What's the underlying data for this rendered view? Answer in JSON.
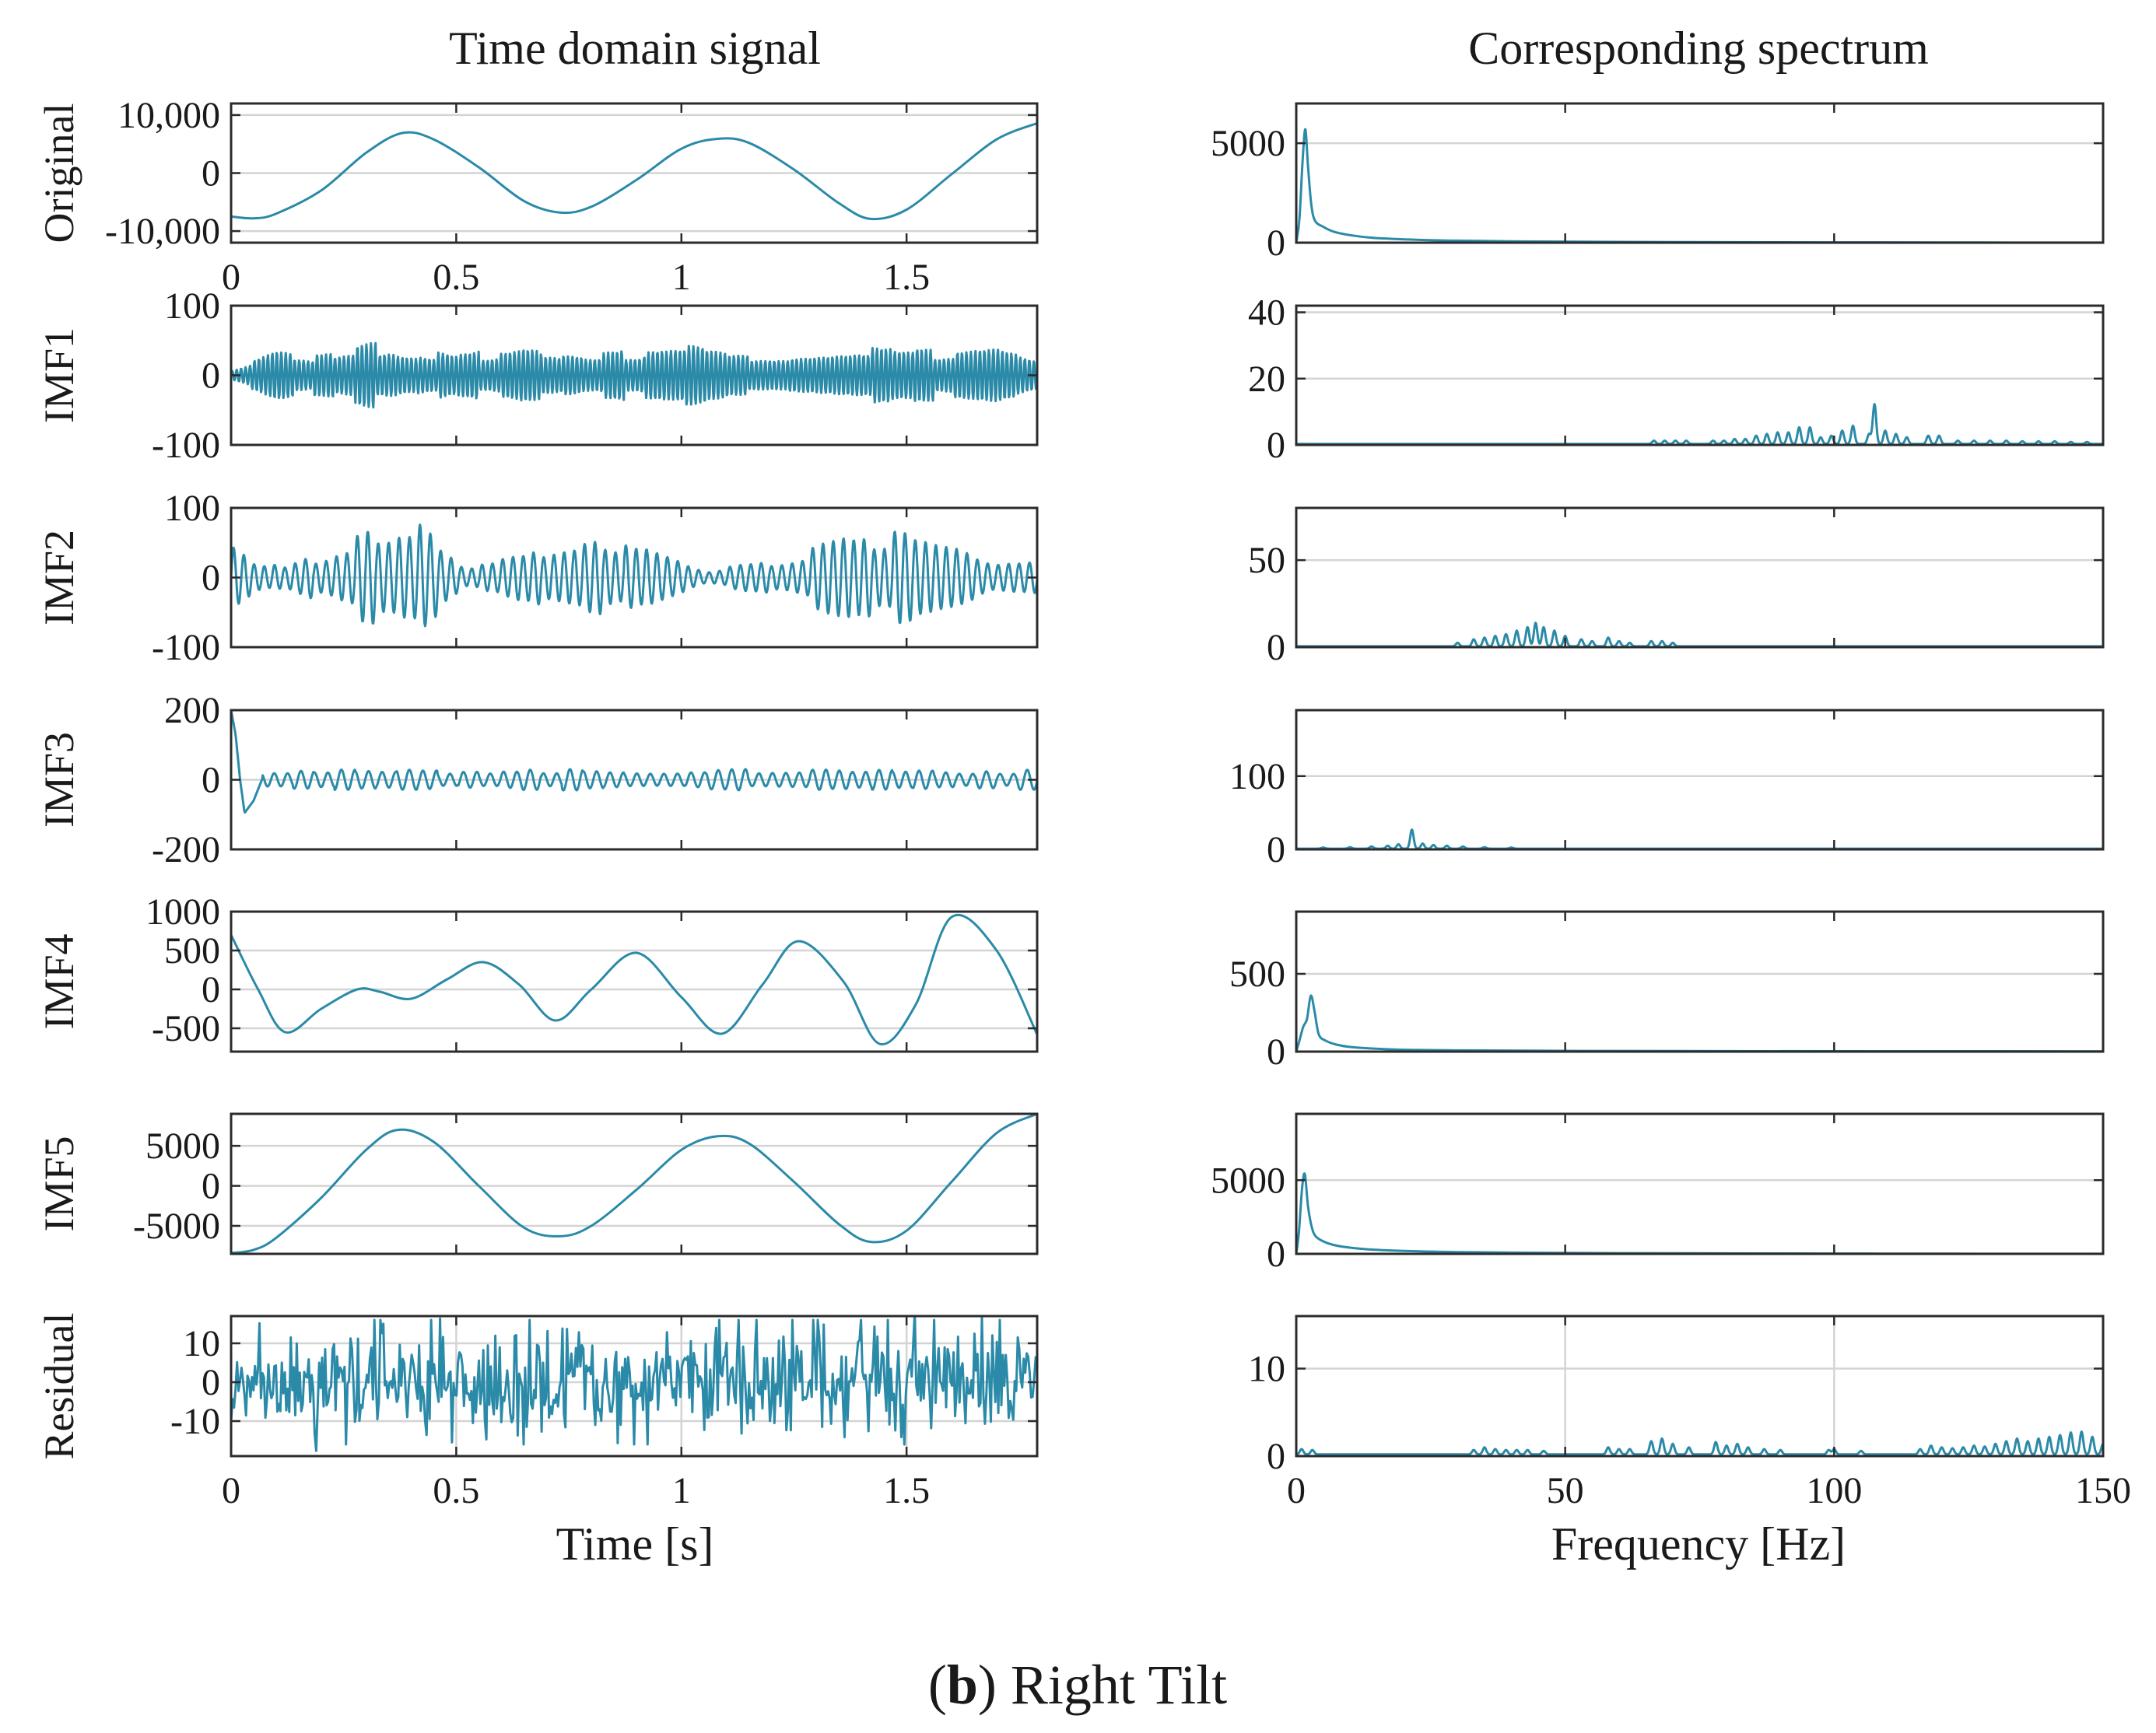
{
  "figure": {
    "time_title": "Time domain signal",
    "spectrum_title": "Corresponding spectrum",
    "time_xlabel": "Time [s]",
    "freq_xlabel": "Frequency [Hz]",
    "caption_bold": "b",
    "caption_text": "Right Tilt",
    "line_color": "#2a8aa8"
  },
  "chart_data": [
    {
      "type": "line",
      "panel": "time",
      "row": 0,
      "ylabel": "Original",
      "xlim": [
        0,
        1.79
      ],
      "ylim": [
        -12000,
        12000
      ],
      "xticks": [
        0,
        0.5,
        1,
        1.5
      ],
      "xticklabels": [
        "0",
        "0.5",
        "1",
        "1.5"
      ],
      "yticks": [
        10000,
        0,
        -10000
      ],
      "yticklabels": [
        "10,000",
        "0",
        "-10,000"
      ],
      "x": [
        0.0,
        0.05,
        0.1,
        0.2,
        0.3,
        0.38,
        0.45,
        0.55,
        0.65,
        0.73,
        0.8,
        0.9,
        1.0,
        1.08,
        1.15,
        1.25,
        1.35,
        1.42,
        1.5,
        1.6,
        1.7,
        1.79
      ],
      "y": [
        -7500,
        -7800,
        -7000,
        -3000,
        3500,
        6900,
        5800,
        1000,
        -4800,
        -6800,
        -5800,
        -1200,
        4200,
        5900,
        5200,
        600,
        -5200,
        -7900,
        -6300,
        -200,
        5800,
        8600
      ]
    },
    {
      "type": "line",
      "panel": "time",
      "row": 1,
      "ylabel": "IMF1",
      "xlim": [
        0,
        1.79
      ],
      "ylim": [
        -100,
        100
      ],
      "xticks": [
        0,
        0.5,
        1,
        1.5
      ],
      "xticklabels": [],
      "yticks": [
        100,
        0,
        -100
      ],
      "yticklabels": [
        "100",
        "0",
        "-100"
      ],
      "signal": {
        "kind": "oscillation",
        "cycles": 180,
        "envelope": [
          [
            0,
            8
          ],
          [
            0.1,
            35
          ],
          [
            0.2,
            25
          ],
          [
            0.35,
            40
          ],
          [
            0.5,
            22
          ],
          [
            0.65,
            35
          ],
          [
            0.8,
            25
          ],
          [
            1.0,
            38
          ],
          [
            1.1,
            30
          ],
          [
            1.25,
            28
          ],
          [
            1.4,
            35
          ],
          [
            1.55,
            30
          ],
          [
            1.7,
            36
          ],
          [
            1.79,
            20
          ]
        ]
      },
      "amplitude_peak": 40
    },
    {
      "type": "line",
      "panel": "time",
      "row": 2,
      "ylabel": "IMF2",
      "xlim": [
        0,
        1.79
      ],
      "ylim": [
        -100,
        100
      ],
      "xticks": [
        0,
        0.5,
        1,
        1.5
      ],
      "xticklabels": [],
      "yticks": [
        100,
        0,
        -100
      ],
      "yticklabels": [
        "100",
        "0",
        "-100"
      ],
      "signal": {
        "kind": "oscillation",
        "cycles": 78,
        "envelope": [
          [
            0,
            45
          ],
          [
            0.05,
            22
          ],
          [
            0.12,
            12
          ],
          [
            0.2,
            30
          ],
          [
            0.3,
            55
          ],
          [
            0.42,
            60
          ],
          [
            0.52,
            15
          ],
          [
            0.62,
            22
          ],
          [
            0.72,
            42
          ],
          [
            0.82,
            55
          ],
          [
            0.92,
            35
          ],
          [
            1.05,
            8
          ],
          [
            1.15,
            18
          ],
          [
            1.25,
            25
          ],
          [
            1.35,
            45
          ],
          [
            1.48,
            52
          ],
          [
            1.6,
            38
          ],
          [
            1.7,
            15
          ],
          [
            1.79,
            20
          ]
        ]
      },
      "amplitude_peak": 70
    },
    {
      "type": "line",
      "panel": "time",
      "row": 3,
      "ylabel": "IMF3",
      "xlim": [
        0,
        1.79
      ],
      "ylim": [
        -200,
        200
      ],
      "xticks": [
        0,
        0.5,
        1,
        1.5
      ],
      "xticklabels": [],
      "yticks": [
        200,
        0,
        -200
      ],
      "yticklabels": [
        "200",
        "0",
        "-200"
      ],
      "signal": {
        "kind": "oscillation",
        "cycles": 60,
        "envelope": [
          [
            0,
            25
          ],
          [
            0.3,
            22
          ],
          [
            0.6,
            25
          ],
          [
            1.0,
            22
          ],
          [
            1.4,
            26
          ],
          [
            1.79,
            22
          ]
        ]
      },
      "start_transient": [
        [
          0.0,
          200
        ],
        [
          0.01,
          130
        ],
        [
          0.02,
          0
        ],
        [
          0.03,
          -95
        ],
        [
          0.05,
          -60
        ],
        [
          0.07,
          5
        ]
      ]
    },
    {
      "type": "line",
      "panel": "time",
      "row": 4,
      "ylabel": "IMF4",
      "xlim": [
        0,
        1.79
      ],
      "ylim": [
        -800,
        1000
      ],
      "xticks": [
        0,
        0.5,
        1,
        1.5
      ],
      "xticklabels": [],
      "yticks": [
        1000,
        500,
        0,
        -500
      ],
      "yticklabels": [
        "1000",
        "500",
        "0",
        "-500"
      ],
      "x": [
        0.0,
        0.06,
        0.12,
        0.2,
        0.28,
        0.33,
        0.4,
        0.48,
        0.56,
        0.64,
        0.72,
        0.8,
        0.9,
        1.0,
        1.09,
        1.18,
        1.26,
        1.36,
        1.44,
        1.52,
        1.6,
        1.7,
        1.79
      ],
      "y": [
        700,
        0,
        -550,
        -250,
        0,
        -30,
        -120,
        130,
        350,
        60,
        -400,
        0,
        470,
        -100,
        -570,
        60,
        620,
        100,
        -700,
        -200,
        930,
        500,
        -580
      ]
    },
    {
      "type": "line",
      "panel": "time",
      "row": 5,
      "ylabel": "IMF5",
      "xlim": [
        0,
        1.79
      ],
      "ylim": [
        -8500,
        9000
      ],
      "xticks": [
        0,
        0.5,
        1,
        1.5
      ],
      "xticklabels": [],
      "yticks": [
        5000,
        0,
        -5000
      ],
      "yticklabels": [
        "5000",
        "0",
        "-5000"
      ],
      "x": [
        0.0,
        0.05,
        0.1,
        0.2,
        0.3,
        0.37,
        0.45,
        0.55,
        0.65,
        0.73,
        0.8,
        0.9,
        1.0,
        1.08,
        1.15,
        1.25,
        1.35,
        1.42,
        1.5,
        1.6,
        1.7,
        1.79
      ],
      "y": [
        -8400,
        -8000,
        -6500,
        -1500,
        4500,
        7000,
        5500,
        0,
        -5200,
        -6300,
        -5000,
        -500,
        4500,
        6200,
        5300,
        500,
        -4800,
        -7000,
        -5600,
        500,
        6600,
        9000
      ]
    },
    {
      "type": "line",
      "panel": "time",
      "row": 6,
      "ylabel": "Residual",
      "xlim": [
        0,
        1.79
      ],
      "ylim": [
        -19,
        17
      ],
      "xticks": [
        0,
        0.5,
        1,
        1.5
      ],
      "xticklabels": [
        "0",
        "0.5",
        "1",
        "1.5"
      ],
      "yticks": [
        10,
        0,
        -10
      ],
      "yticklabels": [
        "10",
        "0",
        "-10"
      ],
      "xgrid": true,
      "signal": {
        "kind": "noise",
        "points": 540,
        "envelope": [
          [
            0,
            9
          ],
          [
            1.79,
            9
          ]
        ]
      },
      "amplitude_peak": 16
    },
    {
      "type": "line",
      "panel": "spectrum",
      "row": 0,
      "xlim": [
        0,
        150
      ],
      "ylim": [
        0,
        7000
      ],
      "xticks": [
        0,
        50,
        100,
        150
      ],
      "xticklabels": [],
      "yticks": [
        5000,
        0
      ],
      "yticklabels": [
        "5000",
        "0"
      ],
      "x": [
        0,
        0.6,
        1.2,
        1.7,
        2.2,
        2.8,
        3.5,
        5,
        7,
        10,
        14,
        20,
        30,
        45,
        60,
        80,
        100,
        120,
        150
      ],
      "y": [
        0,
        1200,
        4200,
        5700,
        3800,
        1900,
        1100,
        800,
        550,
        380,
        250,
        170,
        100,
        60,
        40,
        25,
        15,
        10,
        5
      ]
    },
    {
      "type": "line",
      "panel": "spectrum",
      "row": 1,
      "xlim": [
        0,
        150
      ],
      "ylim": [
        0,
        42
      ],
      "xticks": [
        0,
        50,
        100,
        150
      ],
      "xticklabels": [],
      "yticks": [
        40,
        20,
        0
      ],
      "yticklabels": [
        "40",
        "20",
        "0"
      ],
      "baseline": 0.3,
      "peaks": [
        [
          66.5,
          1
        ],
        [
          68.5,
          1
        ],
        [
          70.5,
          1
        ],
        [
          72.5,
          1
        ],
        [
          77.5,
          1
        ],
        [
          79.5,
          1
        ],
        [
          81.5,
          1.5
        ],
        [
          83.5,
          1.5
        ],
        [
          85.5,
          2.5
        ],
        [
          87.5,
          3
        ],
        [
          89.5,
          3.5
        ],
        [
          91.5,
          3.5
        ],
        [
          93.5,
          5
        ],
        [
          95.5,
          5
        ],
        [
          97.5,
          2
        ],
        [
          99.5,
          2.5
        ],
        [
          101.5,
          4
        ],
        [
          103.5,
          5.5
        ],
        [
          106.5,
          3
        ],
        [
          107.5,
          12
        ],
        [
          109.5,
          4
        ],
        [
          111.5,
          3
        ],
        [
          113.5,
          2
        ],
        [
          117.5,
          2.5
        ],
        [
          119.5,
          2.5
        ],
        [
          123,
          1
        ],
        [
          126,
          1
        ],
        [
          129,
          1
        ],
        [
          132,
          1
        ],
        [
          135,
          0.8
        ],
        [
          138,
          0.8
        ],
        [
          141,
          0.8
        ],
        [
          144,
          0.6
        ],
        [
          147,
          0.6
        ]
      ]
    },
    {
      "type": "line",
      "panel": "spectrum",
      "row": 2,
      "xlim": [
        0,
        150
      ],
      "ylim": [
        0,
        80
      ],
      "xticks": [
        0,
        50,
        100,
        150
      ],
      "xticklabels": [],
      "yticks": [
        50,
        0
      ],
      "yticklabels": [
        "50",
        "0"
      ],
      "baseline": 0.5,
      "peaks": [
        [
          30,
          2
        ],
        [
          33,
          4
        ],
        [
          35,
          5
        ],
        [
          37,
          6
        ],
        [
          39,
          7
        ],
        [
          41,
          9
        ],
        [
          43,
          11
        ],
        [
          44.5,
          13.5
        ],
        [
          46,
          11
        ],
        [
          48,
          9
        ],
        [
          50,
          6
        ],
        [
          53,
          4
        ],
        [
          55,
          3
        ],
        [
          58,
          5
        ],
        [
          60,
          3
        ],
        [
          62,
          2
        ],
        [
          66,
          3
        ],
        [
          68,
          3
        ],
        [
          70,
          2
        ]
      ]
    },
    {
      "type": "line",
      "panel": "spectrum",
      "row": 3,
      "xlim": [
        0,
        150
      ],
      "ylim": [
        0,
        190
      ],
      "xticks": [
        0,
        50,
        100,
        150
      ],
      "xticklabels": [],
      "yticks": [
        100,
        0
      ],
      "yticklabels": [
        "100",
        "0"
      ],
      "baseline": 1,
      "peaks": [
        [
          5,
          1.5
        ],
        [
          10,
          2
        ],
        [
          14,
          3
        ],
        [
          17,
          4
        ],
        [
          19,
          6
        ],
        [
          21.5,
          26
        ],
        [
          23.5,
          7
        ],
        [
          25.5,
          5
        ],
        [
          28,
          4
        ],
        [
          31,
          3
        ],
        [
          35,
          2
        ],
        [
          40,
          1.5
        ]
      ]
    },
    {
      "type": "line",
      "panel": "spectrum",
      "row": 4,
      "xlim": [
        0,
        150
      ],
      "ylim": [
        0,
        900
      ],
      "xticks": [
        0,
        50,
        100,
        150
      ],
      "xticklabels": [],
      "yticks": [
        500,
        0
      ],
      "yticklabels": [
        "500",
        "0"
      ],
      "x": [
        0,
        0.5,
        1.3,
        2,
        2.7,
        3.4,
        4.2,
        5.5,
        7.5,
        10,
        14,
        20,
        30,
        50,
        80,
        150
      ],
      "y": [
        0,
        60,
        160,
        210,
        360,
        260,
        110,
        70,
        45,
        30,
        20,
        12,
        8,
        5,
        3,
        2
      ]
    },
    {
      "type": "line",
      "panel": "spectrum",
      "row": 5,
      "xlim": [
        0,
        150
      ],
      "ylim": [
        0,
        9500
      ],
      "xticks": [
        0,
        50,
        100,
        150
      ],
      "xticklabels": [],
      "yticks": [
        5000,
        0
      ],
      "yticklabels": [
        "5000",
        "0"
      ],
      "x": [
        0,
        0.5,
        1.1,
        1.6,
        2.2,
        2.9,
        3.6,
        5,
        7,
        10,
        14,
        20,
        30,
        45,
        60,
        80,
        100,
        120,
        150
      ],
      "y": [
        0,
        1500,
        4500,
        5400,
        3200,
        1800,
        1200,
        850,
        600,
        420,
        290,
        200,
        120,
        75,
        50,
        30,
        20,
        12,
        6
      ]
    },
    {
      "type": "line",
      "panel": "spectrum",
      "row": 6,
      "xlim": [
        0,
        150
      ],
      "ylim": [
        0,
        16
      ],
      "xticks": [
        0,
        50,
        100,
        150
      ],
      "xticklabels": [
        "0",
        "50",
        "100",
        "150"
      ],
      "yticks": [
        10,
        0
      ],
      "yticklabels": [
        "10",
        "0"
      ],
      "xgrid": true,
      "baseline": 0.2,
      "peaks": [
        [
          1,
          0.6
        ],
        [
          3,
          0.5
        ],
        [
          33,
          0.5
        ],
        [
          35,
          0.8
        ],
        [
          37,
          0.6
        ],
        [
          39,
          0.5
        ],
        [
          41,
          0.5
        ],
        [
          43,
          0.5
        ],
        [
          46,
          0.4
        ],
        [
          58,
          0.8
        ],
        [
          60,
          0.6
        ],
        [
          62,
          0.6
        ],
        [
          66,
          1.5
        ],
        [
          68,
          1.8
        ],
        [
          70,
          1.2
        ],
        [
          73,
          0.8
        ],
        [
          78,
          1.4
        ],
        [
          80,
          1.0
        ],
        [
          82,
          1.2
        ],
        [
          84,
          0.8
        ],
        [
          87,
          0.6
        ],
        [
          90,
          0.5
        ],
        [
          99,
          0.5
        ],
        [
          100,
          0.6
        ],
        [
          105,
          0.4
        ],
        [
          116,
          0.6
        ],
        [
          118,
          1.0
        ],
        [
          120,
          0.8
        ],
        [
          122,
          0.7
        ],
        [
          124,
          0.8
        ],
        [
          126,
          1.0
        ],
        [
          128,
          0.9
        ],
        [
          130,
          1.2
        ],
        [
          132,
          1.5
        ],
        [
          134,
          1.8
        ],
        [
          136,
          1.5
        ],
        [
          138,
          1.8
        ],
        [
          140,
          2.0
        ],
        [
          142,
          2.2
        ],
        [
          144,
          2.5
        ],
        [
          146,
          2.6
        ],
        [
          148,
          2.0
        ],
        [
          150,
          1.2
        ]
      ]
    }
  ]
}
